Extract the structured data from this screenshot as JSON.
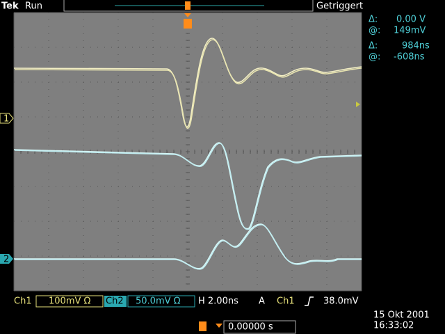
{
  "header": {
    "brand": "Tek",
    "status": "Run",
    "trigger_state": "Getriggert"
  },
  "cursors": [
    {
      "label": "Δ:",
      "value": "0.00 V"
    },
    {
      "label": "@:",
      "value": "149mV"
    },
    {
      "label": "Δ:",
      "value": "984ns"
    },
    {
      "label": "@:",
      "value": "-608ns"
    }
  ],
  "channel_markers": [
    "1",
    "2"
  ],
  "status_bar": {
    "ch1": "Ch1",
    "ch1_scale": "100mV Ω",
    "ch2": "Ch2",
    "ch2_scale": "50.0mV Ω",
    "horizontal": "H 2.00ns",
    "trigger_mode": "A",
    "trigger_source": "Ch1",
    "trigger_level": "38.0mV"
  },
  "footer": {
    "trigger_position": "0.00000 s",
    "date": "15 Okt 2001",
    "time": "16:33:02"
  }
}
